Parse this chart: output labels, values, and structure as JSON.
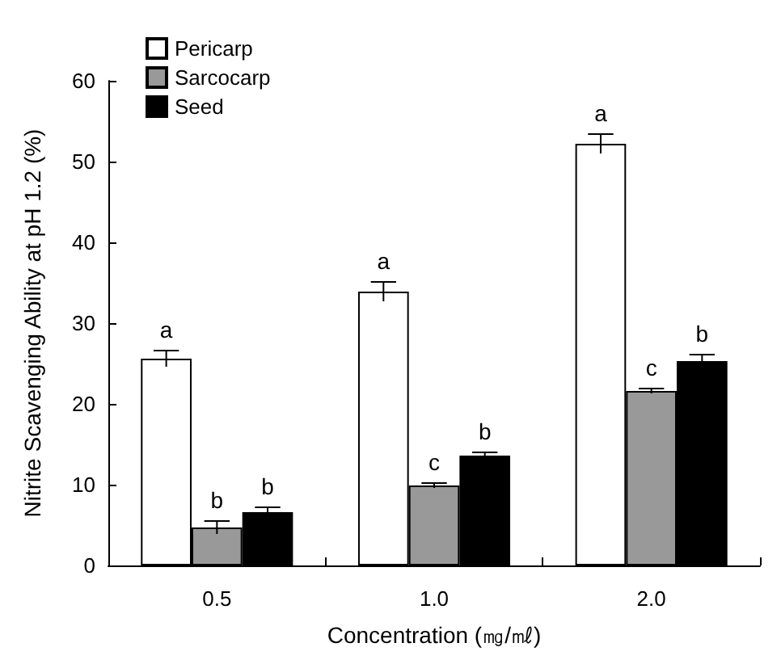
{
  "chart_data": {
    "type": "bar",
    "xlabel": "Concentration (㎎/㎖)",
    "ylabel": "Nitrite Scavenging Ability at pH 1.2 (%)",
    "categories": [
      "0.5",
      "1.0",
      "2.0"
    ],
    "series": [
      {
        "name": "Pericarp",
        "color": "#ffffff",
        "values": [
          25.6,
          33.9,
          52.2
        ],
        "errors": [
          1,
          1.2,
          1.2
        ],
        "value_labels": [
          "a",
          "a",
          "a"
        ]
      },
      {
        "name": "Sarcocarp",
        "color": "#999999",
        "values": [
          4.7,
          9.9,
          21.6
        ],
        "errors": [
          0.8,
          0.3,
          0.3
        ],
        "value_labels": [
          "b",
          "c",
          "c"
        ]
      },
      {
        "name": "Seed",
        "color": "#000000",
        "values": [
          6.6,
          13.6,
          25.3
        ],
        "errors": [
          0.6,
          0.4,
          0.8
        ],
        "value_labels": [
          "b",
          "b",
          "b"
        ]
      }
    ],
    "ylim": [
      0,
      60
    ],
    "yticks": [
      0,
      10,
      20,
      30,
      40,
      50,
      60
    ],
    "grid": false,
    "legend": "top left"
  }
}
